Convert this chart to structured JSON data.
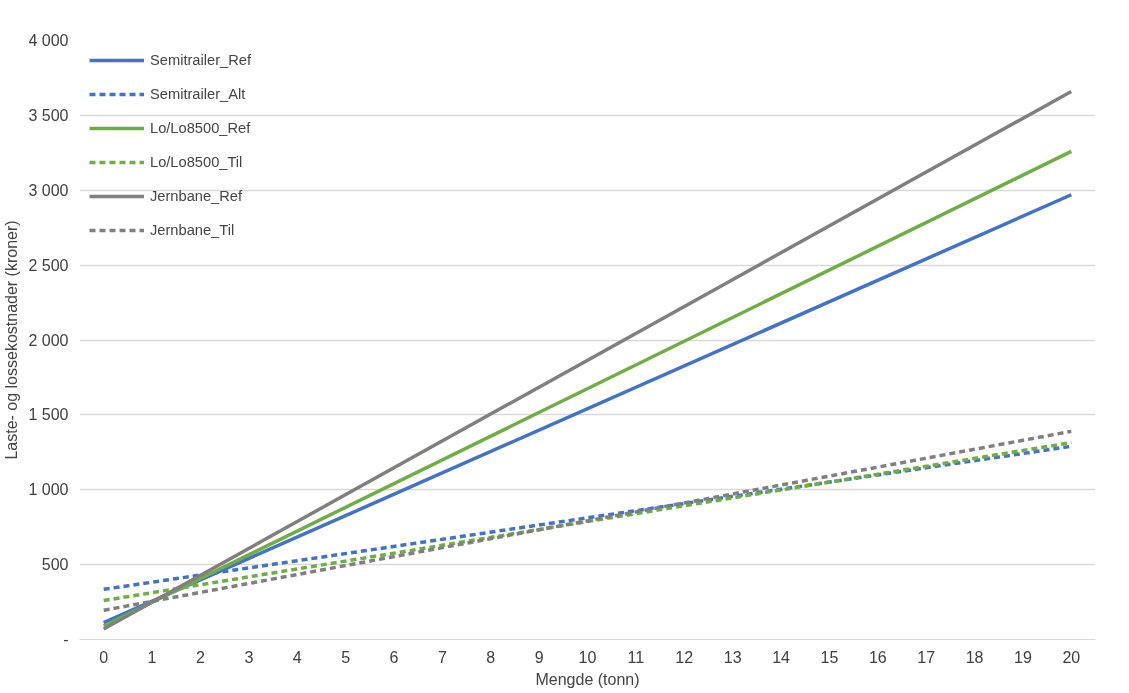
{
  "chart_data": {
    "type": "line",
    "xlabel": "Mengde (tonn)",
    "ylabel": "Laste- og lossekostnader (kroner)",
    "x": [
      0,
      20
    ],
    "series": [
      {
        "name": "Semitrailer_Ref",
        "color": "#4472c4",
        "line_style": "solid",
        "values": [
          113,
          2970
        ]
      },
      {
        "name": "Semitrailer_Alt",
        "color": "#4472c4",
        "line_style": "dashed",
        "values": [
          335,
          1290
        ]
      },
      {
        "name": "Lo/Lo8500_Ref",
        "color": "#70ad47",
        "line_style": "solid",
        "values": [
          90,
          3260
        ]
      },
      {
        "name": "Lo/Lo8500_Til",
        "color": "#70ad47",
        "line_style": "dashed",
        "values": [
          260,
          1315
        ]
      },
      {
        "name": "Jernbane_Ref",
        "color": "#808080",
        "line_style": "solid",
        "values": [
          70,
          3660
        ]
      },
      {
        "name": "Jernbane_Til",
        "color": "#808080",
        "line_style": "dashed",
        "values": [
          195,
          1390
        ]
      }
    ],
    "xlim": [
      -0.5,
      20.5
    ],
    "xticks": [
      0,
      1,
      2,
      3,
      4,
      5,
      6,
      7,
      8,
      9,
      10,
      11,
      12,
      13,
      14,
      15,
      16,
      17,
      18,
      19,
      20
    ],
    "ylim": [
      0,
      4000
    ],
    "yticks": [
      {
        "value": 0,
        "label": "-"
      },
      {
        "value": 500,
        "label": "500"
      },
      {
        "value": 1000,
        "label": "1 000"
      },
      {
        "value": 1500,
        "label": "1 500"
      },
      {
        "value": 2000,
        "label": "2 000"
      },
      {
        "value": 2500,
        "label": "2 500"
      },
      {
        "value": 3000,
        "label": "3 000"
      },
      {
        "value": 3500,
        "label": "3 500"
      },
      {
        "value": 4000,
        "label": "4 000"
      }
    ],
    "grid": "y",
    "legend": "top left",
    "marker": "none"
  }
}
